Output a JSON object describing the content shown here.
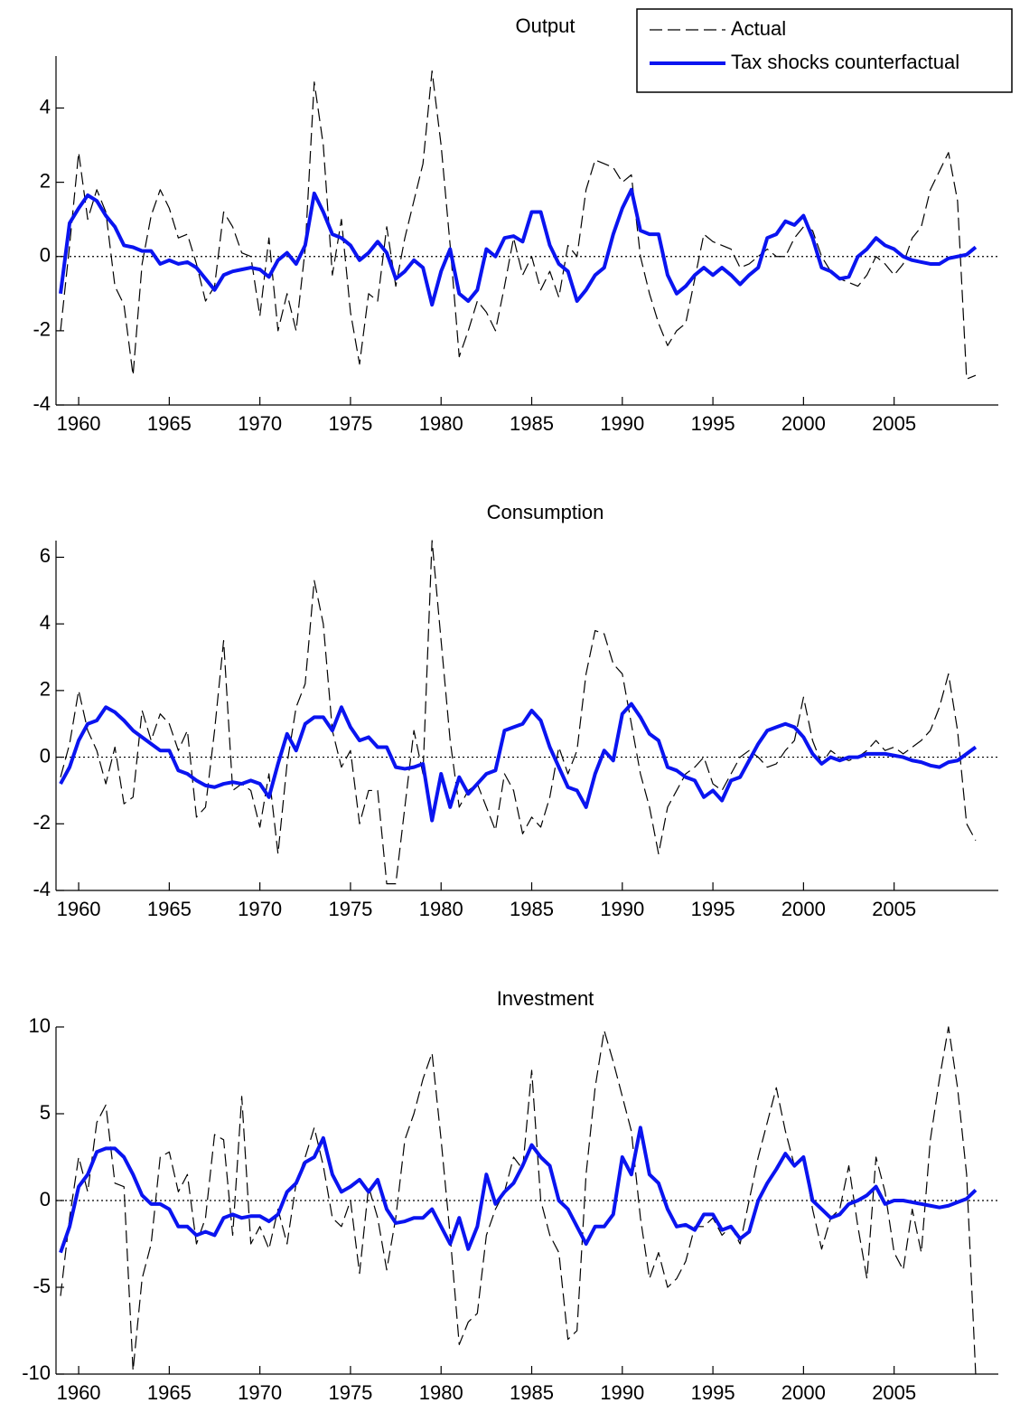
{
  "chart_data": [
    {
      "type": "line",
      "title": "Output",
      "legend": "upper right",
      "x": [
        1959,
        1959.5,
        1960,
        1960.5,
        1961,
        1961.5,
        1962,
        1962.5,
        1963,
        1963.5,
        1964,
        1964.5,
        1965,
        1965.5,
        1966,
        1966.5,
        1967,
        1967.5,
        1968,
        1968.5,
        1969,
        1969.5,
        1970,
        1970.5,
        1971,
        1971.5,
        1972,
        1972.5,
        1973,
        1973.5,
        1974,
        1974.5,
        1975,
        1975.5,
        1976,
        1976.5,
        1977,
        1977.5,
        1978,
        1978.5,
        1979,
        1979.5,
        1980,
        1980.5,
        1981,
        1981.5,
        1982,
        1982.5,
        1983,
        1983.5,
        1984,
        1984.5,
        1985,
        1985.5,
        1986,
        1986.5,
        1987,
        1987.5,
        1988,
        1988.5,
        1989,
        1989.5,
        1990,
        1990.5,
        1991,
        1991.5,
        1992,
        1992.5,
        1993,
        1993.5,
        1994,
        1994.5,
        1995,
        1995.5,
        1996,
        1996.5,
        1997,
        1997.5,
        1998,
        1998.5,
        1999,
        1999.5,
        2000,
        2000.5,
        2001,
        2001.5,
        2002,
        2002.5,
        2003,
        2003.5,
        2004,
        2004.5,
        2005,
        2005.5,
        2006,
        2006.5,
        2007,
        2007.5,
        2008,
        2008.5,
        2009,
        2009.5
      ],
      "series": [
        {
          "name": "Actual",
          "color": "#000000",
          "style": "dashed",
          "values": [
            -2.0,
            0.3,
            2.8,
            1.0,
            1.8,
            1.2,
            -0.8,
            -1.3,
            -3.2,
            -0.2,
            1.1,
            1.8,
            1.3,
            0.5,
            0.6,
            -0.2,
            -1.2,
            -0.8,
            1.2,
            0.8,
            0.1,
            0.0,
            -1.6,
            0.5,
            -2.0,
            -1.0,
            -2.0,
            0.2,
            4.7,
            3.0,
            -0.5,
            1.0,
            -1.5,
            -2.9,
            -1.0,
            -1.2,
            0.8,
            -0.8,
            0.5,
            1.5,
            2.5,
            5.0,
            3.0,
            0.3,
            -2.7,
            -2.0,
            -1.2,
            -1.5,
            -2.0,
            -0.8,
            0.5,
            -0.5,
            0.0,
            -0.9,
            -0.4,
            -1.1,
            0.3,
            0.0,
            1.8,
            2.6,
            2.5,
            2.4,
            2.0,
            2.2,
            0.0,
            -1.0,
            -1.8,
            -2.4,
            -2.0,
            -1.8,
            -0.6,
            0.6,
            0.4,
            0.3,
            0.2,
            -0.3,
            -0.2,
            0.0,
            0.2,
            0.0,
            0.0,
            0.5,
            0.8,
            0.7,
            0.0,
            -0.4,
            -0.6,
            -0.7,
            -0.8,
            -0.5,
            0.0,
            -0.2,
            -0.5,
            -0.2,
            0.5,
            0.8,
            1.8,
            2.3,
            2.8,
            1.5,
            -3.3,
            -3.2
          ]
        },
        {
          "name": "Tax shocks counterfactual",
          "color": "#0a14f0",
          "style": "solid",
          "values": [
            -1.0,
            0.9,
            1.3,
            1.65,
            1.5,
            1.1,
            0.8,
            0.3,
            0.25,
            0.15,
            0.15,
            -0.2,
            -0.1,
            -0.2,
            -0.15,
            -0.3,
            -0.6,
            -0.9,
            -0.5,
            -0.4,
            -0.35,
            -0.3,
            -0.35,
            -0.55,
            -0.1,
            0.1,
            -0.2,
            0.3,
            1.7,
            1.2,
            0.6,
            0.5,
            0.3,
            -0.1,
            0.1,
            0.4,
            0.1,
            -0.6,
            -0.4,
            -0.1,
            -0.3,
            -1.3,
            -0.4,
            0.2,
            -1.0,
            -1.2,
            -0.9,
            0.2,
            0.0,
            0.5,
            0.55,
            0.4,
            1.2,
            1.2,
            0.3,
            -0.2,
            -0.4,
            -1.2,
            -0.9,
            -0.5,
            -0.3,
            0.6,
            1.3,
            1.8,
            0.7,
            0.6,
            0.6,
            -0.5,
            -1.0,
            -0.8,
            -0.5,
            -0.3,
            -0.5,
            -0.3,
            -0.5,
            -0.75,
            -0.5,
            -0.3,
            0.5,
            0.6,
            0.95,
            0.85,
            1.1,
            0.5,
            -0.3,
            -0.4,
            -0.6,
            -0.55,
            0.0,
            0.2,
            0.5,
            0.3,
            0.2,
            0.0,
            -0.1,
            -0.15,
            -0.2,
            -0.2,
            -0.05,
            0.0,
            0.05,
            0.25
          ]
        }
      ],
      "xlim": [
        1958.75,
        2010.75
      ],
      "ylim": [
        -4,
        5.4
      ],
      "xticks": [
        1960,
        1965,
        1970,
        1975,
        1980,
        1985,
        1990,
        1995,
        2000,
        2005
      ],
      "yticks": [
        -4,
        -2,
        0,
        2,
        4
      ]
    },
    {
      "type": "line",
      "title": "Consumption",
      "x": [
        1959,
        1959.5,
        1960,
        1960.5,
        1961,
        1961.5,
        1962,
        1962.5,
        1963,
        1963.5,
        1964,
        1964.5,
        1965,
        1965.5,
        1966,
        1966.5,
        1967,
        1967.5,
        1968,
        1968.5,
        1969,
        1969.5,
        1970,
        1970.5,
        1971,
        1971.5,
        1972,
        1972.5,
        1973,
        1973.5,
        1974,
        1974.5,
        1975,
        1975.5,
        1976,
        1976.5,
        1977,
        1977.5,
        1978,
        1978.5,
        1979,
        1979.5,
        1980,
        1980.5,
        1981,
        1981.5,
        1982,
        1982.5,
        1983,
        1983.5,
        1984,
        1984.5,
        1985,
        1985.5,
        1986,
        1986.5,
        1987,
        1987.5,
        1988,
        1988.5,
        1989,
        1989.5,
        1990,
        1990.5,
        1991,
        1991.5,
        1992,
        1992.5,
        1993,
        1993.5,
        1994,
        1994.5,
        1995,
        1995.5,
        1996,
        1996.5,
        1997,
        1997.5,
        1998,
        1998.5,
        1999,
        1999.5,
        2000,
        2000.5,
        2001,
        2001.5,
        2002,
        2002.5,
        2003,
        2003.5,
        2004,
        2004.5,
        2005,
        2005.5,
        2006,
        2006.5,
        2007,
        2007.5,
        2008,
        2008.5,
        2009,
        2009.5
      ],
      "series": [
        {
          "color": "#000000",
          "style": "dashed",
          "values": [
            -0.6,
            0.4,
            2.0,
            0.8,
            0.2,
            -0.8,
            0.3,
            -1.4,
            -1.2,
            1.4,
            0.5,
            1.3,
            1.0,
            0.2,
            0.8,
            -1.8,
            -1.5,
            0.8,
            3.5,
            -1.0,
            -0.8,
            -1.0,
            -2.1,
            -0.5,
            -2.9,
            -0.2,
            1.5,
            2.2,
            5.3,
            4.0,
            0.8,
            -0.3,
            0.2,
            -2.0,
            -1.0,
            -1.0,
            -3.8,
            -3.8,
            -1.5,
            0.8,
            -0.5,
            6.5,
            3.5,
            0.5,
            -1.5,
            -1.0,
            -0.8,
            -1.5,
            -2.2,
            -0.5,
            -1.0,
            -2.3,
            -1.8,
            -2.1,
            -1.2,
            0.3,
            -0.5,
            0.2,
            2.5,
            3.8,
            3.7,
            2.8,
            2.5,
            1.0,
            -0.5,
            -1.5,
            -2.9,
            -1.5,
            -1.0,
            -0.5,
            -0.3,
            0.0,
            -0.8,
            -1.0,
            -0.5,
            0.0,
            0.2,
            0.0,
            -0.3,
            -0.2,
            0.2,
            0.5,
            1.8,
            0.5,
            -0.2,
            0.2,
            0.0,
            -0.1,
            0.0,
            0.2,
            0.5,
            0.2,
            0.3,
            0.1,
            0.3,
            0.5,
            0.8,
            1.5,
            2.5,
            0.8,
            -2.0,
            -2.5
          ]
        },
        {
          "color": "#0a14f0",
          "style": "solid",
          "values": [
            -0.8,
            -0.3,
            0.5,
            1.0,
            1.1,
            1.5,
            1.35,
            1.1,
            0.8,
            0.6,
            0.4,
            0.2,
            0.2,
            -0.4,
            -0.5,
            -0.7,
            -0.85,
            -0.9,
            -0.8,
            -0.75,
            -0.8,
            -0.7,
            -0.8,
            -1.2,
            -0.2,
            0.7,
            0.2,
            1.0,
            1.2,
            1.2,
            0.8,
            1.5,
            0.9,
            0.5,
            0.6,
            0.3,
            0.3,
            -0.3,
            -0.35,
            -0.3,
            -0.2,
            -1.9,
            -0.5,
            -1.5,
            -0.6,
            -1.1,
            -0.8,
            -0.5,
            -0.4,
            0.8,
            0.9,
            1.0,
            1.4,
            1.1,
            0.3,
            -0.3,
            -0.9,
            -1.0,
            -1.5,
            -0.5,
            0.2,
            -0.1,
            1.3,
            1.6,
            1.2,
            0.7,
            0.5,
            -0.3,
            -0.4,
            -0.6,
            -0.7,
            -1.2,
            -1.0,
            -1.3,
            -0.7,
            -0.6,
            -0.1,
            0.4,
            0.8,
            0.9,
            1.0,
            0.9,
            0.6,
            0.1,
            -0.2,
            0.0,
            -0.1,
            0.0,
            0.0,
            0.1,
            0.1,
            0.1,
            0.05,
            0.0,
            -0.1,
            -0.15,
            -0.25,
            -0.3,
            -0.15,
            -0.1,
            0.1,
            0.3
          ]
        }
      ],
      "xlim": [
        1958.75,
        2010.75
      ],
      "ylim": [
        -4,
        6.5
      ],
      "xticks": [
        1960,
        1965,
        1970,
        1975,
        1980,
        1985,
        1990,
        1995,
        2000,
        2005
      ],
      "yticks": [
        -4,
        -2,
        0,
        2,
        4,
        6
      ]
    },
    {
      "type": "line",
      "title": "Investment",
      "x": [
        1959,
        1959.5,
        1960,
        1960.5,
        1961,
        1961.5,
        1962,
        1962.5,
        1963,
        1963.5,
        1964,
        1964.5,
        1965,
        1965.5,
        1966,
        1966.5,
        1967,
        1967.5,
        1968,
        1968.5,
        1969,
        1969.5,
        1970,
        1970.5,
        1971,
        1971.5,
        1972,
        1972.5,
        1973,
        1973.5,
        1974,
        1974.5,
        1975,
        1975.5,
        1976,
        1976.5,
        1977,
        1977.5,
        1978,
        1978.5,
        1979,
        1979.5,
        1980,
        1980.5,
        1981,
        1981.5,
        1982,
        1982.5,
        1983,
        1983.5,
        1984,
        1984.5,
        1985,
        1985.5,
        1986,
        1986.5,
        1987,
        1987.5,
        1988,
        1988.5,
        1989,
        1989.5,
        1990,
        1990.5,
        1991,
        1991.5,
        1992,
        1992.5,
        1993,
        1993.5,
        1994,
        1994.5,
        1995,
        1995.5,
        1996,
        1996.5,
        1997,
        1997.5,
        1998,
        1998.5,
        1999,
        1999.5,
        2000,
        2000.5,
        2001,
        2001.5,
        2002,
        2002.5,
        2003,
        2003.5,
        2004,
        2004.5,
        2005,
        2005.5,
        2006,
        2006.5,
        2007,
        2007.5,
        2008,
        2008.5,
        2009,
        2009.5
      ],
      "series": [
        {
          "color": "#000000",
          "style": "dashed",
          "values": [
            -5.5,
            -1.0,
            2.5,
            0.5,
            4.5,
            5.5,
            1.0,
            0.8,
            -9.8,
            -4.5,
            -2.5,
            2.5,
            2.8,
            0.5,
            1.5,
            -2.5,
            -1.0,
            3.8,
            3.5,
            -2.0,
            6.0,
            -2.5,
            -1.5,
            -2.8,
            -0.5,
            -2.5,
            1.0,
            2.5,
            4.2,
            2.0,
            -1.0,
            -1.5,
            0.0,
            -4.2,
            0.8,
            -1.0,
            -4.0,
            -1.0,
            3.5,
            5.0,
            7.0,
            8.5,
            3.5,
            -2.0,
            -8.3,
            -7.0,
            -6.5,
            -2.0,
            -0.5,
            0.5,
            2.5,
            1.8,
            7.5,
            0.0,
            -2.0,
            -3.0,
            -8.0,
            -7.5,
            1.5,
            6.5,
            9.8,
            8.0,
            6.0,
            4.0,
            -1.0,
            -4.5,
            -3.0,
            -5.0,
            -4.5,
            -3.5,
            -1.5,
            -1.5,
            -1.0,
            -2.0,
            -1.5,
            -2.5,
            0.0,
            2.5,
            4.5,
            6.5,
            4.0,
            2.0,
            2.5,
            -0.5,
            -2.8,
            -1.0,
            -0.5,
            2.0,
            -1.5,
            -4.5,
            2.5,
            0.5,
            -3.0,
            -4.0,
            -0.5,
            -3.0,
            3.5,
            7.0,
            10.0,
            6.5,
            1.5,
            -10.0
          ]
        },
        {
          "color": "#0a14f0",
          "style": "solid",
          "values": [
            -3.0,
            -1.5,
            0.8,
            1.5,
            2.8,
            3.0,
            3.0,
            2.5,
            1.5,
            0.3,
            -0.2,
            -0.2,
            -0.5,
            -1.5,
            -1.5,
            -2.0,
            -1.8,
            -2.0,
            -1.0,
            -0.8,
            -1.0,
            -0.9,
            -0.9,
            -1.2,
            -0.8,
            0.5,
            1.0,
            2.2,
            2.5,
            3.6,
            1.5,
            0.5,
            0.8,
            1.2,
            0.5,
            1.2,
            -0.5,
            -1.3,
            -1.2,
            -1.0,
            -1.0,
            -0.5,
            -1.5,
            -2.5,
            -1.0,
            -2.8,
            -1.5,
            1.5,
            -0.2,
            0.5,
            1.0,
            2.0,
            3.2,
            2.5,
            2.0,
            0.0,
            -0.5,
            -1.5,
            -2.5,
            -1.5,
            -1.5,
            -0.8,
            2.5,
            1.5,
            4.2,
            1.5,
            1.0,
            -0.5,
            -1.5,
            -1.4,
            -1.7,
            -0.8,
            -0.8,
            -1.7,
            -1.5,
            -2.2,
            -1.8,
            0.0,
            1.0,
            1.8,
            2.7,
            2.0,
            2.5,
            0.0,
            -0.5,
            -1.0,
            -0.8,
            -0.2,
            0.0,
            0.3,
            0.8,
            -0.2,
            0.0,
            0.0,
            -0.1,
            -0.2,
            -0.3,
            -0.4,
            -0.3,
            -0.1,
            0.1,
            0.6
          ]
        }
      ],
      "xlim": [
        1958.75,
        2010.75
      ],
      "ylim": [
        -10,
        10
      ],
      "xticks": [
        1960,
        1965,
        1970,
        1975,
        1980,
        1985,
        1990,
        1995,
        2000,
        2005
      ],
      "yticks": [
        -10,
        -5,
        0,
        5,
        10
      ]
    }
  ]
}
